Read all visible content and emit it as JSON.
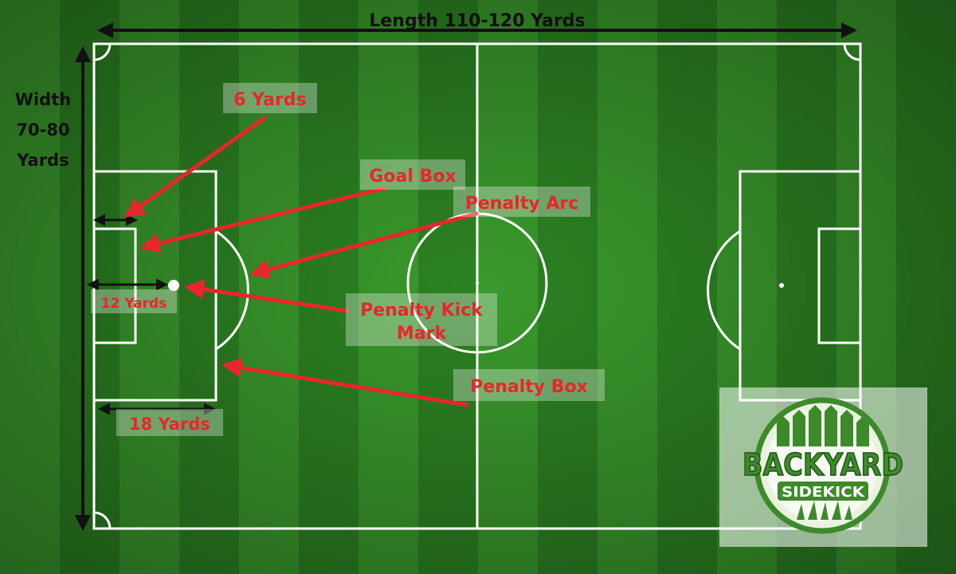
{
  "diagram": {
    "length_label": "Length 110-120 Yards",
    "width_label": [
      "Width",
      "70-80",
      "Yards"
    ],
    "callouts": {
      "six_yards": "6 Yards",
      "goal_box": "Goal Box",
      "penalty_arc": "Penalty Arc",
      "penalty_kick_mark": [
        "Penalty Kick",
        "Mark"
      ],
      "penalty_box": "Penalty Box",
      "twelve_yards": "12 Yards",
      "eighteen_yards": "18 Yards"
    }
  },
  "logo": {
    "top_text": "BACKYARD",
    "bottom_text": "SIDEKICK"
  },
  "colors": {
    "grass_light": "#3a9a2c",
    "grass_dark": "#2c8322",
    "line": "#ffffff",
    "callout": "#e8262c",
    "logo_green": "#3d8a2a"
  }
}
